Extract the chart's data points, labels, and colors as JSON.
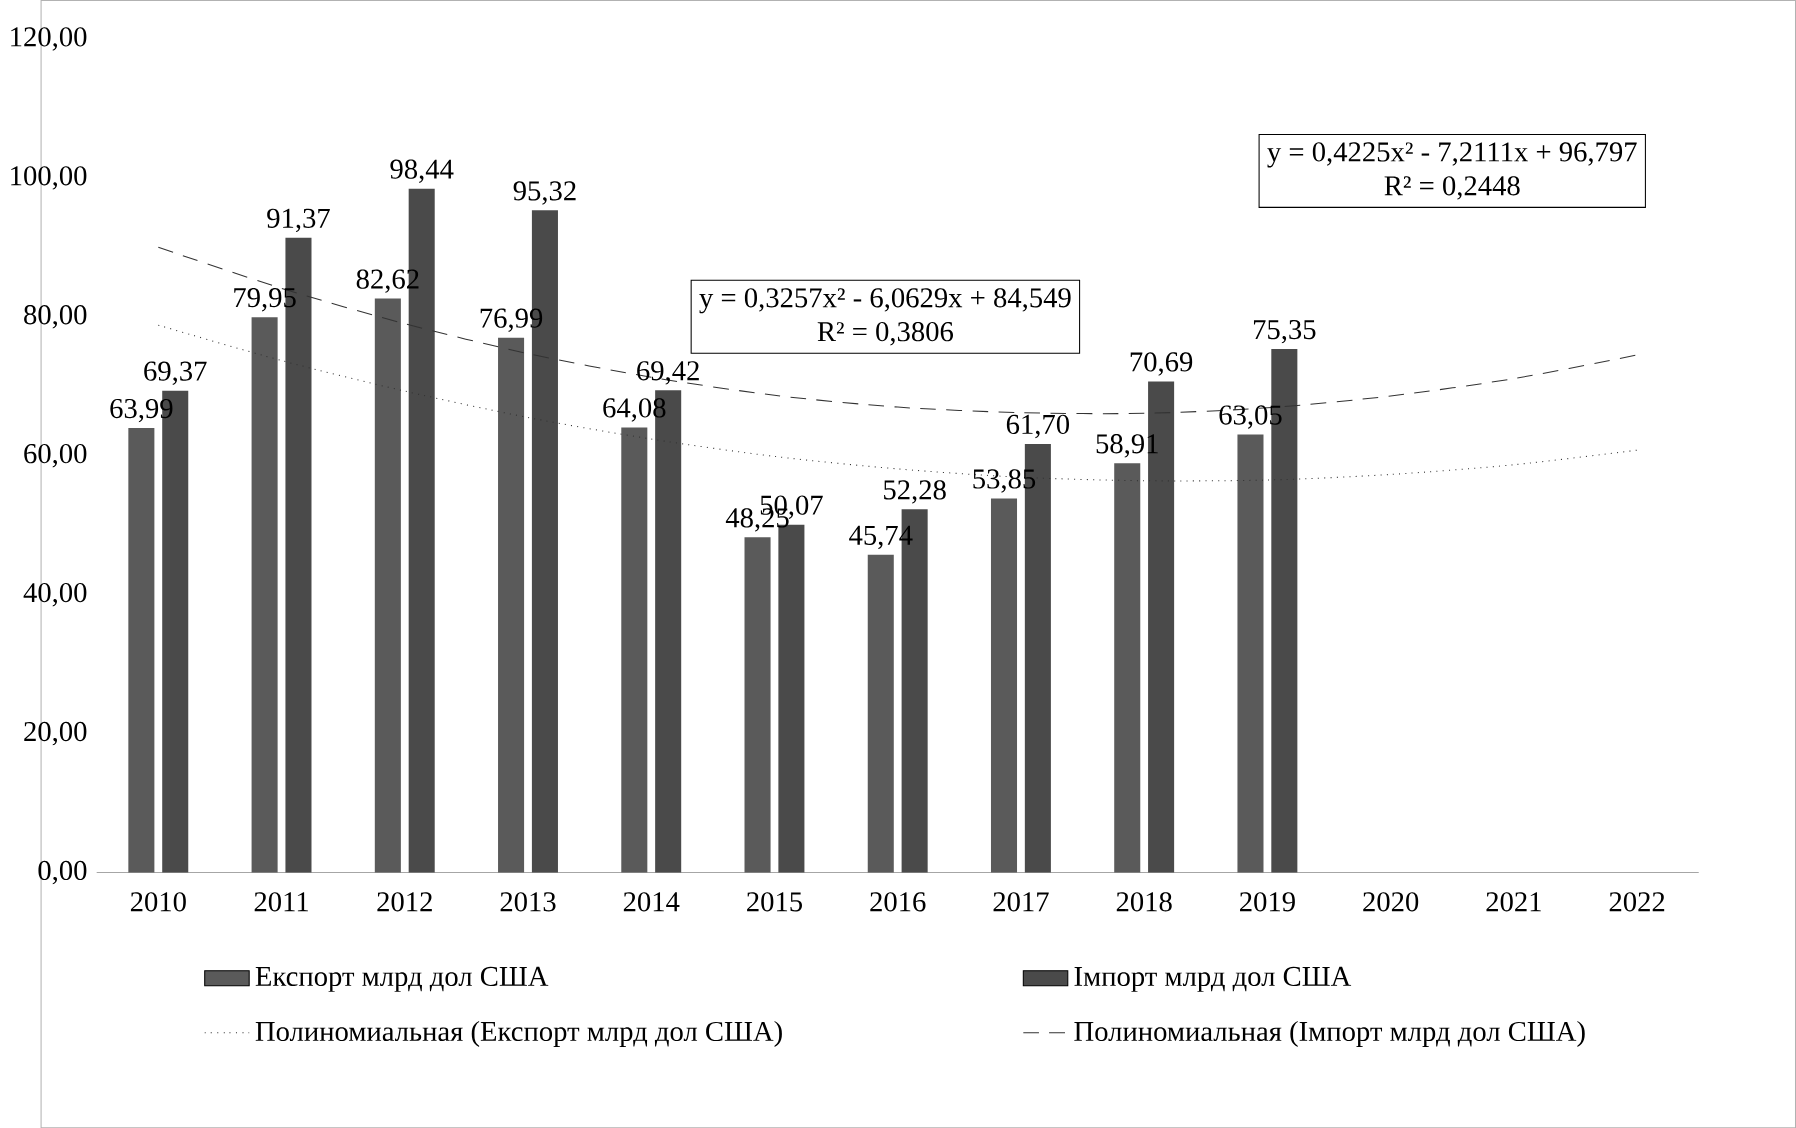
{
  "chart_data": {
    "type": "bar",
    "categories": [
      "2010",
      "2011",
      "2012",
      "2013",
      "2014",
      "2015",
      "2016",
      "2017",
      "2018",
      "2019",
      "2020",
      "2021",
      "2022"
    ],
    "ylim": [
      0,
      120
    ],
    "yticks": [
      {
        "value": 0,
        "label": "0,00"
      },
      {
        "value": 20,
        "label": "20,00"
      },
      {
        "value": 40,
        "label": "40,00"
      },
      {
        "value": 60,
        "label": "60,00"
      },
      {
        "value": 80,
        "label": "80,00"
      },
      {
        "value": 100,
        "label": "100,00"
      },
      {
        "value": 120,
        "label": "120,00"
      }
    ],
    "series": [
      {
        "name": "Експорт млрд дол США",
        "color": "#5a5a5a",
        "values": [
          63.99,
          79.95,
          82.62,
          76.99,
          64.08,
          48.25,
          45.74,
          53.85,
          58.91,
          63.05,
          null,
          null,
          null
        ],
        "value_labels": [
          "63,99",
          "79,95",
          "82,62",
          "76,99",
          "64,08",
          "48,25",
          "45,74",
          "53,85",
          "58,91",
          "63,05",
          null,
          null,
          null
        ]
      },
      {
        "name": "Імпорт млрд дол США",
        "color": "#4a4a4a",
        "values": [
          69.37,
          91.37,
          98.44,
          95.32,
          69.42,
          50.07,
          52.28,
          61.7,
          70.69,
          75.35,
          null,
          null,
          null
        ],
        "value_labels": [
          "69,37",
          "91,37",
          "98,44",
          "95,32",
          "69,42",
          "50,07",
          "52,28",
          "61,70",
          "70,69",
          "75,35",
          null,
          null,
          null
        ]
      },
      {
        "name": "Полиномиальная (Експорт млрд дол США)",
        "type": "line",
        "line_style": "dotted",
        "color": "#333333",
        "values": [
          78.8,
          73.7,
          69.3,
          65.5,
          62.4,
          59.9,
          58.1,
          56.9,
          56.4,
          56.5,
          57.3,
          58.7,
          60.8
        ]
      },
      {
        "name": "Полиномиальная (Імпорт млрд дол США)",
        "type": "line",
        "line_style": "dashed",
        "color": "#333333",
        "values": [
          90.0,
          84.1,
          79.0,
          74.7,
          71.3,
          68.7,
          67.0,
          66.2,
          66.1,
          66.9,
          68.6,
          71.1,
          74.5
        ]
      }
    ],
    "annotations": [
      "y = 0,3257x² - 6,0629x + 84,549",
      "R² = 0,3806",
      "y = 0,4225x² - 7,2111x + 96,797",
      "R² = 0,2448"
    ],
    "legend": "bottom"
  }
}
